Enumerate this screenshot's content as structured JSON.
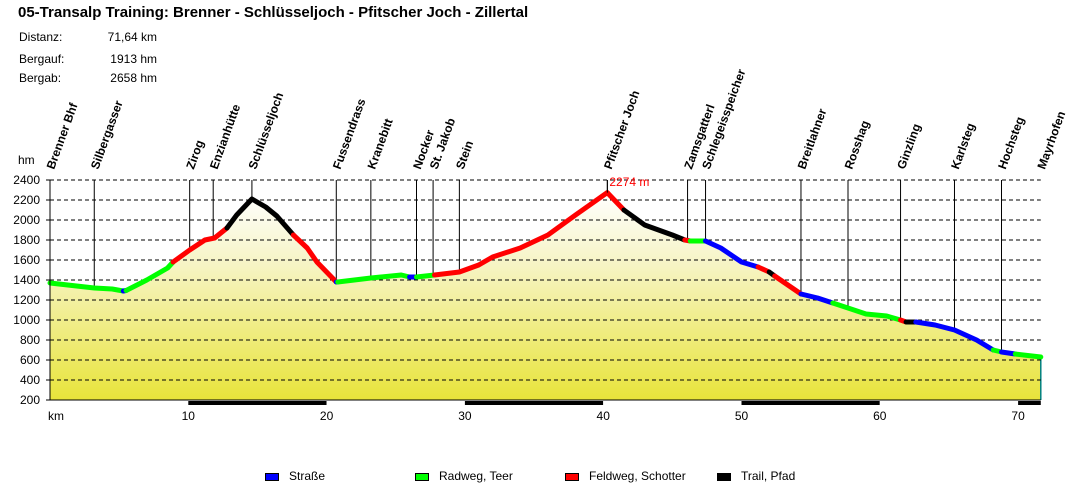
{
  "header": {
    "title": "05-Transalp Training: Brenner - Schlüsseljoch - Pfitscher Joch - Zillertal"
  },
  "stats": [
    {
      "label": "Distanz:",
      "value": "71,64 km"
    },
    {
      "label": "Bergauf:",
      "value": "1913 hm"
    },
    {
      "label": "Bergab:",
      "value": "2658 hm"
    }
  ],
  "legend": [
    {
      "label": "Straße",
      "color": "#0000FF"
    },
    {
      "label": "Radweg, Teer",
      "color": "#00FF00"
    },
    {
      "label": "Feldweg, Schotter",
      "color": "#FF0000"
    },
    {
      "label": "Trail, Pfad",
      "color": "#000000"
    }
  ],
  "chart_data": {
    "type": "area",
    "title": "05-Transalp Training: Brenner - Schlüsseljoch - Pfitscher Joch - Zillertal",
    "xlabel": "km",
    "ylabel": "hm",
    "xlim": [
      0,
      71.64
    ],
    "ylim": [
      200,
      2400
    ],
    "xticks": [
      10,
      20,
      30,
      40,
      50,
      60,
      70
    ],
    "yticks": [
      200,
      400,
      600,
      800,
      1000,
      1200,
      1400,
      1600,
      1800,
      2000,
      2200,
      2400
    ],
    "grid": "horizontal dashed",
    "legend_position": "bottom",
    "annotations": [
      {
        "text": "2274 m",
        "x": 40.3,
        "y": 2274,
        "color": "#FF0000"
      }
    ],
    "waypoints": [
      {
        "name": "Brenner Bhf",
        "km": 0.0
      },
      {
        "name": "Silbergasser",
        "km": 3.2
      },
      {
        "name": "Zirog",
        "km": 10.1
      },
      {
        "name": "Enzianhütte",
        "km": 11.8
      },
      {
        "name": "Schlüsseljoch",
        "km": 14.6
      },
      {
        "name": "Fussendrass",
        "km": 20.7
      },
      {
        "name": "Kranebitt",
        "km": 23.2
      },
      {
        "name": "Nocker",
        "km": 26.5
      },
      {
        "name": "St. Jakob",
        "km": 27.7
      },
      {
        "name": "Stein",
        "km": 29.6
      },
      {
        "name": "Pfitscher Joch",
        "km": 40.3
      },
      {
        "name": "Zamsgatterl",
        "km": 46.1
      },
      {
        "name": "Schlegeisspeicher",
        "km": 47.4
      },
      {
        "name": "Breitlahner",
        "km": 54.3
      },
      {
        "name": "Rosshag",
        "km": 57.7
      },
      {
        "name": "Ginzling",
        "km": 61.5
      },
      {
        "name": "Karlsteg",
        "km": 65.4
      },
      {
        "name": "Hochsteg",
        "km": 68.8
      },
      {
        "name": "Mayrhofen",
        "km": 71.64
      }
    ],
    "series": [
      {
        "name": "Radweg, Teer",
        "color": "#00FF00",
        "points": [
          [
            0,
            1370
          ],
          [
            3.2,
            1320
          ],
          [
            4.5,
            1310
          ],
          [
            5.3,
            1290
          ]
        ]
      },
      {
        "name": "Straße",
        "color": "#0000FF",
        "points": [
          [
            5.3,
            1290
          ],
          [
            5.5,
            1295
          ]
        ]
      },
      {
        "name": "Radweg, Teer",
        "color": "#00FF00",
        "points": [
          [
            5.5,
            1295
          ],
          [
            7,
            1400
          ],
          [
            8.5,
            1520
          ],
          [
            8.9,
            1580
          ]
        ]
      },
      {
        "name": "Feldweg, Schotter",
        "color": "#FF0000",
        "points": [
          [
            8.9,
            1580
          ],
          [
            10.1,
            1700
          ],
          [
            11.2,
            1800
          ],
          [
            11.9,
            1820
          ],
          [
            12.8,
            1920
          ]
        ]
      },
      {
        "name": "Trail, Pfad",
        "color": "#000000",
        "points": [
          [
            12.8,
            1920
          ],
          [
            13.5,
            2050
          ],
          [
            14.6,
            2210
          ],
          [
            15.6,
            2130
          ],
          [
            16.4,
            2040
          ],
          [
            17.6,
            1850
          ]
        ]
      },
      {
        "name": "Feldweg, Schotter",
        "color": "#FF0000",
        "points": [
          [
            17.6,
            1850
          ],
          [
            18.6,
            1720
          ],
          [
            19.3,
            1580
          ],
          [
            20.7,
            1380
          ]
        ]
      },
      {
        "name": "Straße",
        "color": "#0000FF",
        "points": [
          [
            20.7,
            1380
          ],
          [
            20.8,
            1380
          ]
        ]
      },
      {
        "name": "Radweg, Teer",
        "color": "#00FF00",
        "points": [
          [
            20.8,
            1380
          ],
          [
            23.2,
            1420
          ],
          [
            25.4,
            1450
          ],
          [
            26.0,
            1430
          ]
        ]
      },
      {
        "name": "Straße",
        "color": "#0000FF",
        "points": [
          [
            26.0,
            1430
          ],
          [
            26.5,
            1430
          ]
        ]
      },
      {
        "name": "Radweg, Teer",
        "color": "#00FF00",
        "points": [
          [
            26.5,
            1430
          ],
          [
            27.8,
            1450
          ]
        ]
      },
      {
        "name": "Feldweg, Schotter",
        "color": "#FF0000",
        "points": [
          [
            27.8,
            1450
          ],
          [
            29.6,
            1480
          ],
          [
            31,
            1550
          ],
          [
            32,
            1630
          ],
          [
            34,
            1720
          ],
          [
            36,
            1850
          ],
          [
            38,
            2050
          ],
          [
            40.3,
            2274
          ],
          [
            41.5,
            2100
          ]
        ]
      },
      {
        "name": "Trail, Pfad",
        "color": "#000000",
        "points": [
          [
            41.5,
            2100
          ],
          [
            43,
            1950
          ],
          [
            45,
            1850
          ],
          [
            45.9,
            1800
          ]
        ]
      },
      {
        "name": "Feldweg, Schotter",
        "color": "#FF0000",
        "points": [
          [
            45.9,
            1800
          ],
          [
            46.3,
            1790
          ]
        ]
      },
      {
        "name": "Radweg, Teer",
        "color": "#00FF00",
        "points": [
          [
            46.3,
            1790
          ],
          [
            47.4,
            1790
          ]
        ]
      },
      {
        "name": "Straße",
        "color": "#0000FF",
        "points": [
          [
            47.4,
            1790
          ],
          [
            48.5,
            1720
          ],
          [
            50,
            1580
          ],
          [
            51.2,
            1530
          ]
        ]
      },
      {
        "name": "Feldweg, Schotter",
        "color": "#FF0000",
        "points": [
          [
            51.2,
            1530
          ],
          [
            52,
            1480
          ]
        ]
      },
      {
        "name": "Trail, Pfad",
        "color": "#000000",
        "points": [
          [
            52,
            1480
          ],
          [
            52.4,
            1440
          ]
        ]
      },
      {
        "name": "Feldweg, Schotter",
        "color": "#FF0000",
        "points": [
          [
            52.4,
            1440
          ],
          [
            54.3,
            1260
          ]
        ]
      },
      {
        "name": "Straße",
        "color": "#0000FF",
        "points": [
          [
            54.3,
            1260
          ],
          [
            55.5,
            1220
          ],
          [
            56.6,
            1170
          ]
        ]
      },
      {
        "name": "Radweg, Teer",
        "color": "#00FF00",
        "points": [
          [
            56.6,
            1170
          ],
          [
            57.7,
            1120
          ],
          [
            59,
            1060
          ],
          [
            60.5,
            1040
          ],
          [
            61.5,
            1000
          ]
        ]
      },
      {
        "name": "Feldweg, Schotter",
        "color": "#FF0000",
        "points": [
          [
            61.5,
            1000
          ],
          [
            61.9,
            980
          ]
        ]
      },
      {
        "name": "Trail, Pfad",
        "color": "#000000",
        "points": [
          [
            61.9,
            980
          ],
          [
            62.6,
            980
          ]
        ]
      },
      {
        "name": "Straße",
        "color": "#0000FF",
        "points": [
          [
            62.6,
            980
          ],
          [
            64,
            950
          ],
          [
            65.4,
            900
          ],
          [
            67,
            800
          ],
          [
            68.2,
            700
          ]
        ]
      },
      {
        "name": "Radweg, Teer",
        "color": "#00FF00",
        "points": [
          [
            68.2,
            700
          ],
          [
            68.8,
            680
          ]
        ]
      },
      {
        "name": "Straße",
        "color": "#0000FF",
        "points": [
          [
            68.8,
            680
          ],
          [
            69.8,
            660
          ]
        ]
      },
      {
        "name": "Radweg, Teer",
        "color": "#00FF00",
        "points": [
          [
            69.8,
            660
          ],
          [
            71.64,
            630
          ]
        ]
      }
    ]
  }
}
